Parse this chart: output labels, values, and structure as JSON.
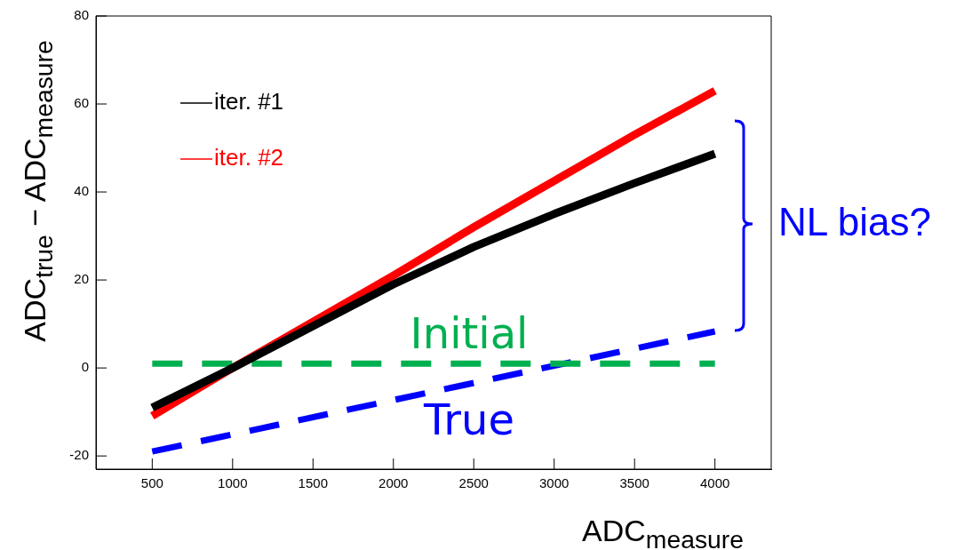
{
  "chart_data": {
    "type": "line",
    "xlabel": "ADC$_{measure}$",
    "ylabel": "ADC$_{true}$ − ADC$_{measure}$",
    "xlim": [
      150,
      4350
    ],
    "ylim": [
      -23,
      80
    ],
    "xticks": [
      500,
      1000,
      1500,
      2000,
      2500,
      3000,
      3500,
      4000
    ],
    "yticks": [
      -20,
      0,
      20,
      40,
      60,
      80
    ],
    "grid": false,
    "legend": "top left",
    "marker": "none",
    "annotations": [
      "NL bias?"
    ],
    "series": [
      {
        "name": "iter. #1",
        "color": "#000000",
        "line_style": "solid",
        "x": [
          500,
          1000,
          1500,
          2000,
          2500,
          3000,
          3500,
          4000
        ],
        "values": [
          -9,
          0,
          9.5,
          19,
          27.5,
          35,
          42,
          48.7
        ]
      },
      {
        "name": "iter. #2",
        "color": "#ff0000",
        "line_style": "solid",
        "x": [
          500,
          1000,
          1500,
          2000,
          2500,
          3000,
          3500,
          4000
        ],
        "values": [
          -10.9,
          0,
          10.5,
          21,
          32,
          42.5,
          53,
          63
        ]
      },
      {
        "name": "Initial",
        "color": "#00b050",
        "line_style": "dashed",
        "x": [
          500,
          4000
        ],
        "values": [
          1,
          1
        ]
      },
      {
        "name": "True",
        "color": "#0000ff",
        "line_style": "dashed",
        "x": [
          500,
          4000
        ],
        "values": [
          -19,
          8.3
        ]
      }
    ]
  }
}
